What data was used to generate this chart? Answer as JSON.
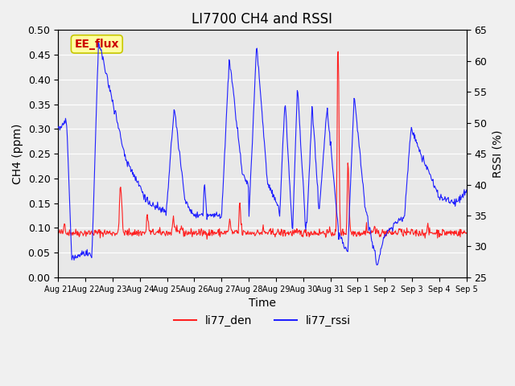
{
  "title": "LI7700 CH4 and RSSI",
  "xlabel": "Time",
  "ylabel_left": "CH4 (ppm)",
  "ylabel_right": "RSSI (%)",
  "ylim_left": [
    0.0,
    0.5
  ],
  "ylim_right": [
    25,
    65
  ],
  "yticks_left": [
    0.0,
    0.05,
    0.1,
    0.15,
    0.2,
    0.25,
    0.3,
    0.35,
    0.4,
    0.45,
    0.5
  ],
  "yticks_right": [
    25,
    30,
    35,
    40,
    45,
    50,
    55,
    60,
    65
  ],
  "xtick_labels": [
    "Aug 21",
    "Aug 22",
    "Aug 23",
    "Aug 24",
    "Aug 25",
    "Aug 26",
    "Aug 27",
    "Aug 28",
    "Aug 29",
    "Aug 30",
    "Aug 31",
    "Sep 1",
    "Sep 2",
    "Sep 3",
    "Sep 4",
    "Sep 5"
  ],
  "color_ch4": "#ff2020",
  "color_rssi": "#2020ff",
  "legend_labels": [
    "li77_den",
    "li77_rssi"
  ],
  "background_color": "#e8e8e8",
  "annotation_text": "EE_flux",
  "annotation_bg": "#ffffa0",
  "annotation_border": "#c8c800",
  "annotation_text_color": "#cc0000",
  "grid_color": "#ffffff",
  "title_fontsize": 12
}
